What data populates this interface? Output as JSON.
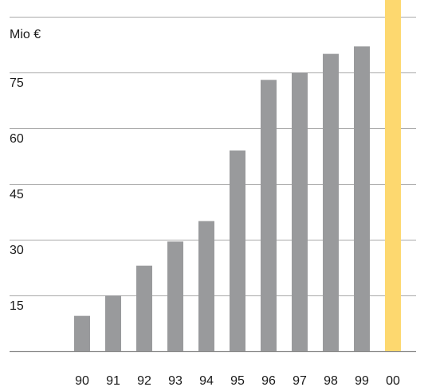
{
  "chart_data": {
    "type": "bar",
    "unit_label": "Mio €",
    "categories": [
      "90",
      "91",
      "92",
      "93",
      "94",
      "95",
      "96",
      "97",
      "98",
      "99",
      "00"
    ],
    "values": [
      9.5,
      15,
      23,
      29.5,
      35,
      54,
      73,
      75,
      80,
      82,
      95
    ],
    "y_ticks": [
      15,
      30,
      45,
      60,
      75
    ],
    "ylim": [
      0,
      90
    ],
    "grid": true,
    "bar_color": "#999a9c",
    "highlight_color": "#fdd86f",
    "highlight_index": 10,
    "grid_color": "#a9a9a9",
    "baseline_color": "#888888"
  }
}
